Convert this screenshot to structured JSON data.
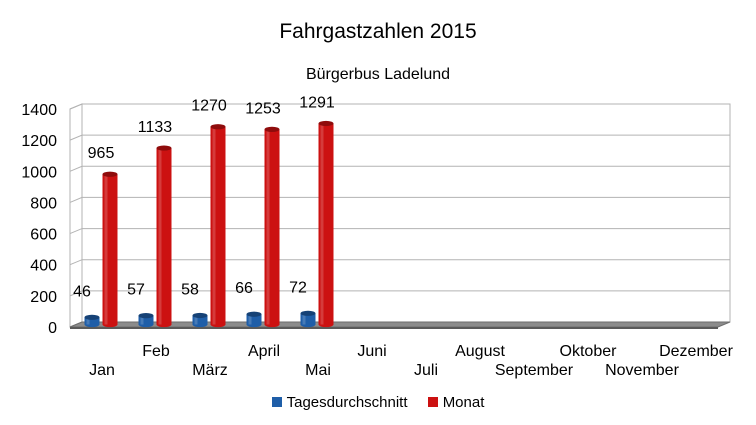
{
  "chart_data": {
    "type": "bar",
    "title": "Fahrgastzahlen 2015",
    "subtitle": "Bürgerbus Ladelund",
    "categories": [
      "Jan",
      "Feb",
      "März",
      "April",
      "Mai",
      "Juni",
      "Juli",
      "August",
      "September",
      "Oktober",
      "November",
      "Dezember"
    ],
    "series": [
      {
        "name": "Tagesdurchschnitt",
        "color": "#1f5ea8",
        "values": [
          46,
          57,
          58,
          66,
          72,
          null,
          null,
          null,
          null,
          null,
          null,
          null
        ]
      },
      {
        "name": "Monat",
        "color": "#cc1111",
        "values": [
          965,
          1133,
          1270,
          1253,
          1291,
          null,
          null,
          null,
          null,
          null,
          null,
          null
        ]
      }
    ],
    "yticks": [
      0,
      200,
      400,
      600,
      800,
      1000,
      1200,
      1400
    ],
    "ylim": [
      0,
      1400
    ],
    "grid": true,
    "legend": "bottom"
  }
}
